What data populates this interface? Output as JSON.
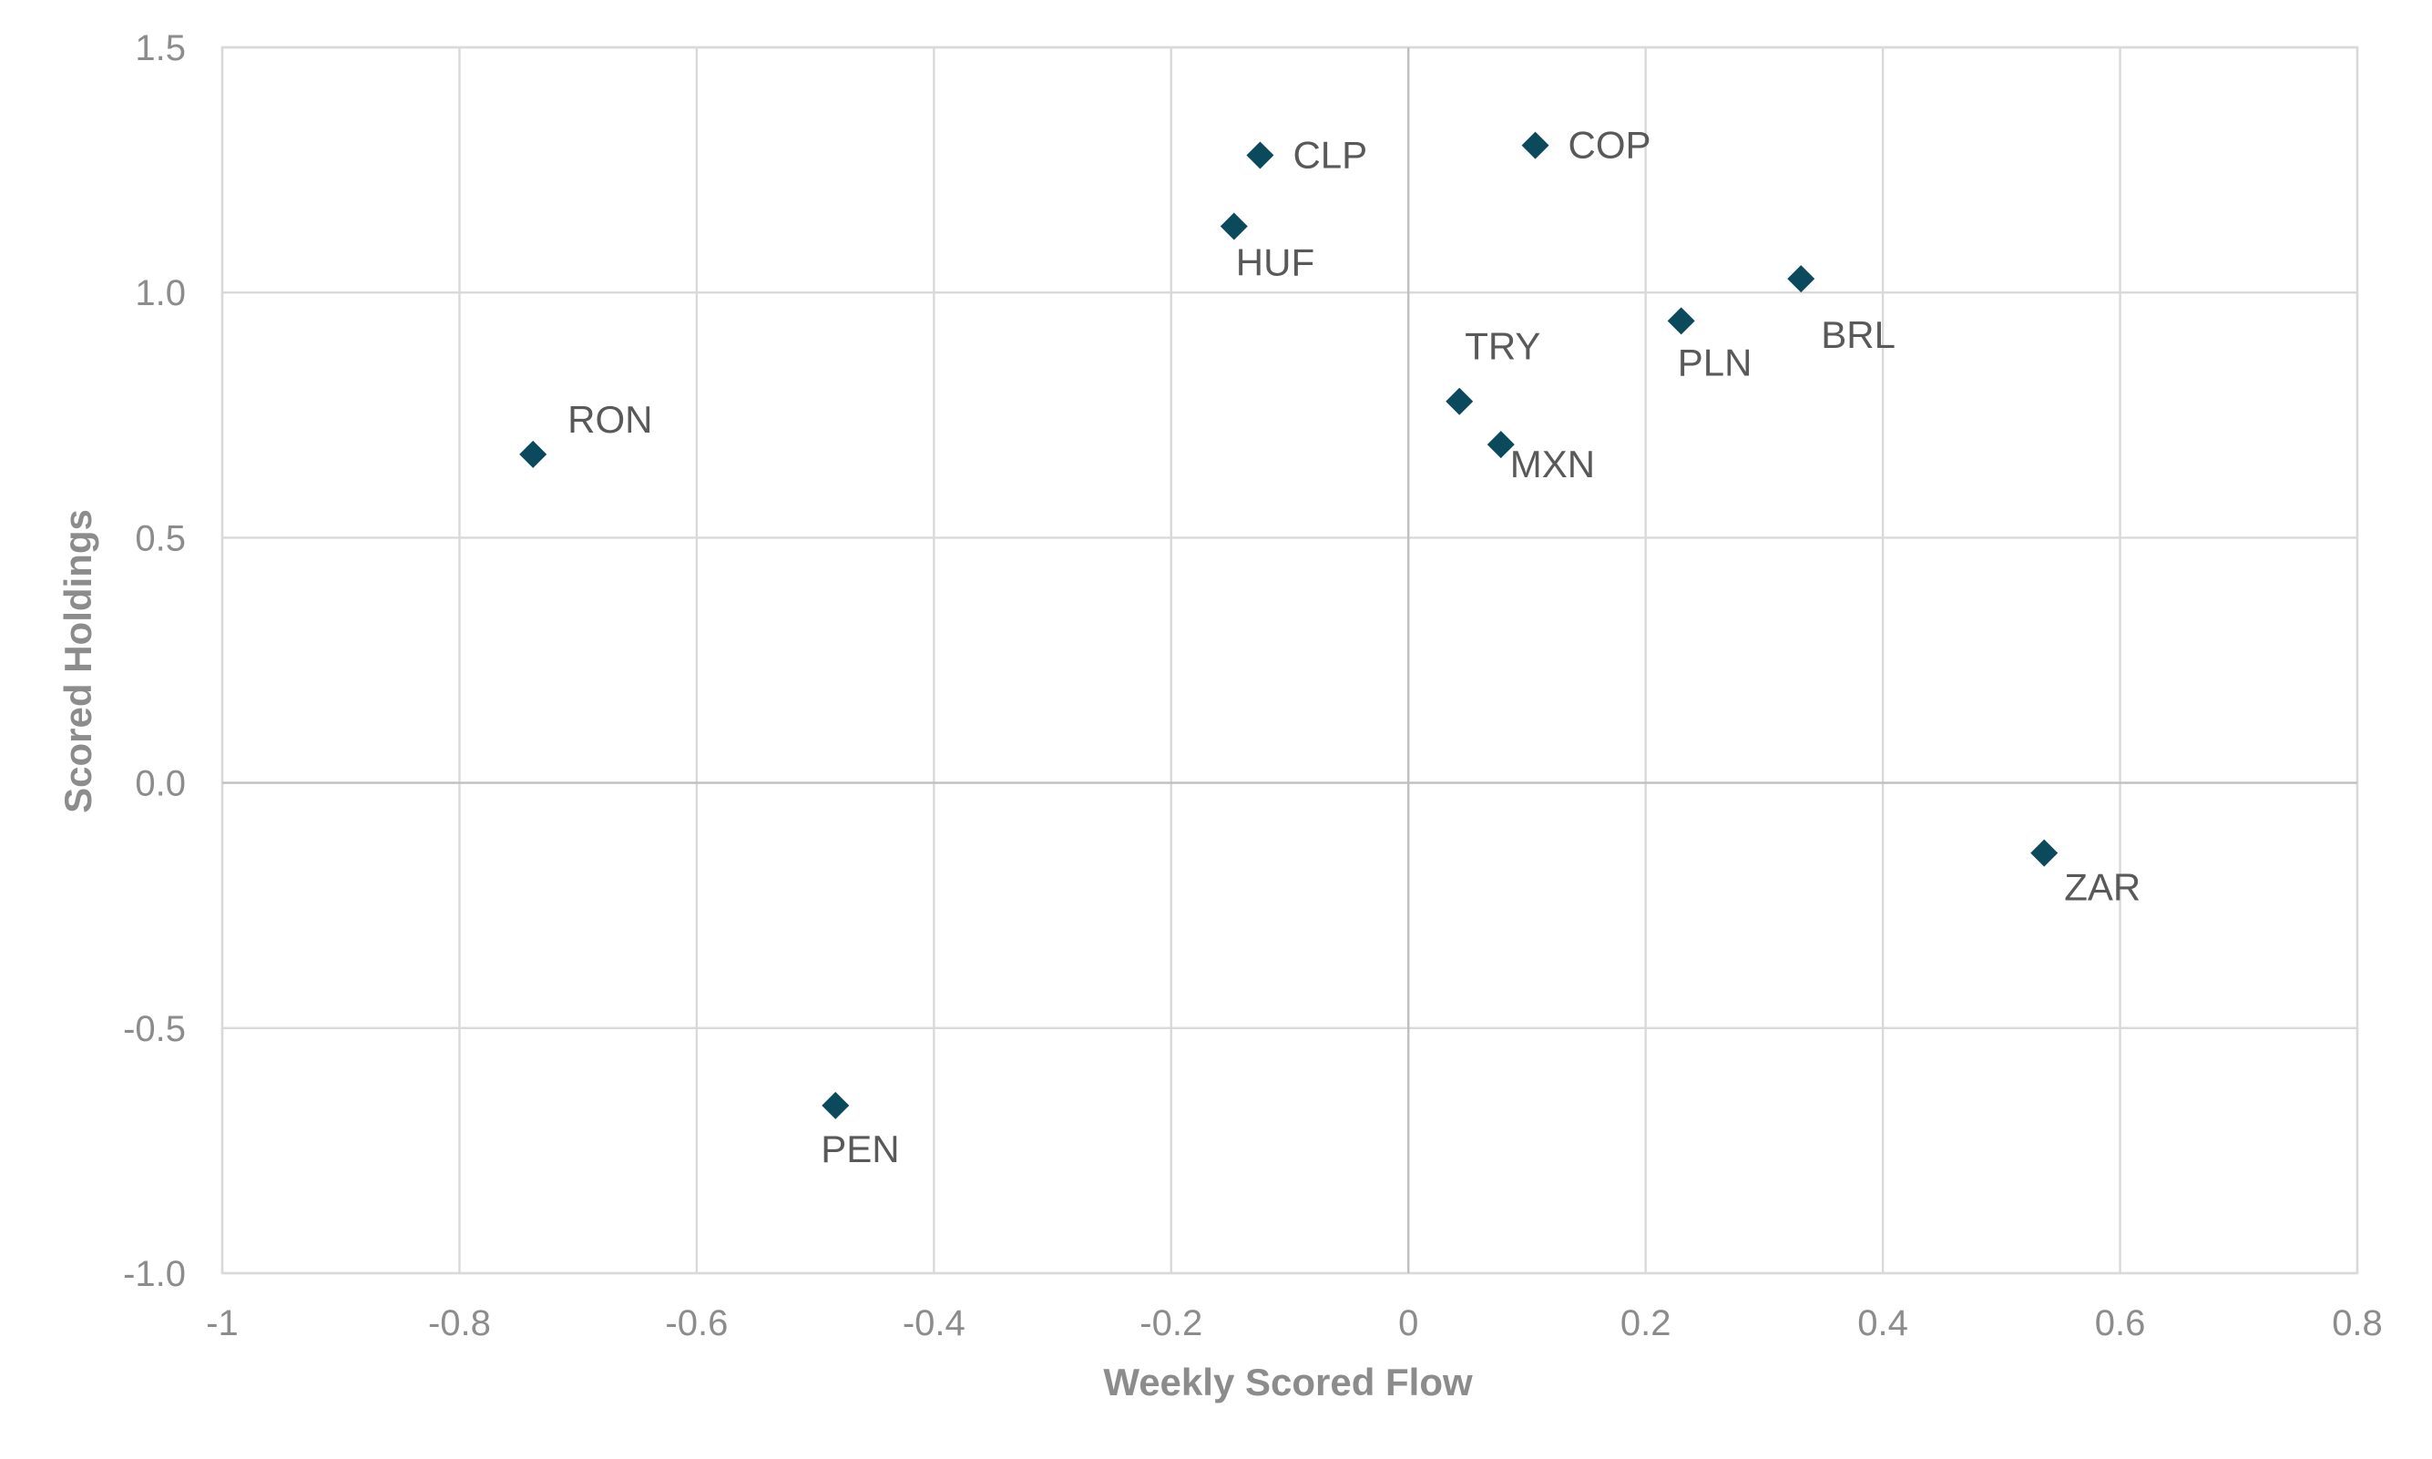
{
  "chart_data": {
    "type": "scatter",
    "title": "",
    "xlabel": "Weekly Scored Flow",
    "ylabel": "Scored Holdings",
    "xlim": [
      -1,
      0.8
    ],
    "ylim": [
      -1.0,
      1.5
    ],
    "xticks": [
      -1,
      -0.8,
      -0.6,
      -0.4,
      -0.2,
      0,
      0.2,
      0.4,
      0.6,
      0.8
    ],
    "xtick_labels": [
      "-1",
      "-0.8",
      "-0.6",
      "-0.4",
      "-0.2",
      "0",
      "0.2",
      "0.4",
      "0.6",
      "0.8"
    ],
    "yticks": [
      -1.0,
      -0.5,
      0.0,
      0.5,
      1.0,
      1.5
    ],
    "ytick_labels": [
      "-1.0",
      "-0.5",
      "0.0",
      "0.5",
      "1.0",
      "1.5"
    ],
    "grid": true,
    "legend": "none",
    "marker": "diamond",
    "marker_color": "#0b4a5c",
    "points": [
      {
        "label": "CLP",
        "x": -0.125,
        "y": 1.28,
        "label_pos": "right"
      },
      {
        "label": "COP",
        "x": 0.107,
        "y": 1.3,
        "label_pos": "right"
      },
      {
        "label": "HUF",
        "x": -0.147,
        "y": 1.135,
        "label_pos": "below-right"
      },
      {
        "label": "BRL",
        "x": 0.331,
        "y": 1.028,
        "label_pos": "below-right"
      },
      {
        "label": "PLN",
        "x": 0.23,
        "y": 0.942,
        "label_pos": "below"
      },
      {
        "label": "TRY",
        "x": 0.043,
        "y": 0.778,
        "label_pos": "above"
      },
      {
        "label": "MXN",
        "x": 0.078,
        "y": 0.69,
        "label_pos": "below-right"
      },
      {
        "label": "RON",
        "x": -0.738,
        "y": 0.67,
        "label_pos": "above-right"
      },
      {
        "label": "ZAR",
        "x": 0.536,
        "y": -0.143,
        "label_pos": "below-right"
      },
      {
        "label": "PEN",
        "x": -0.483,
        "y": -0.658,
        "label_pos": "below"
      }
    ]
  }
}
